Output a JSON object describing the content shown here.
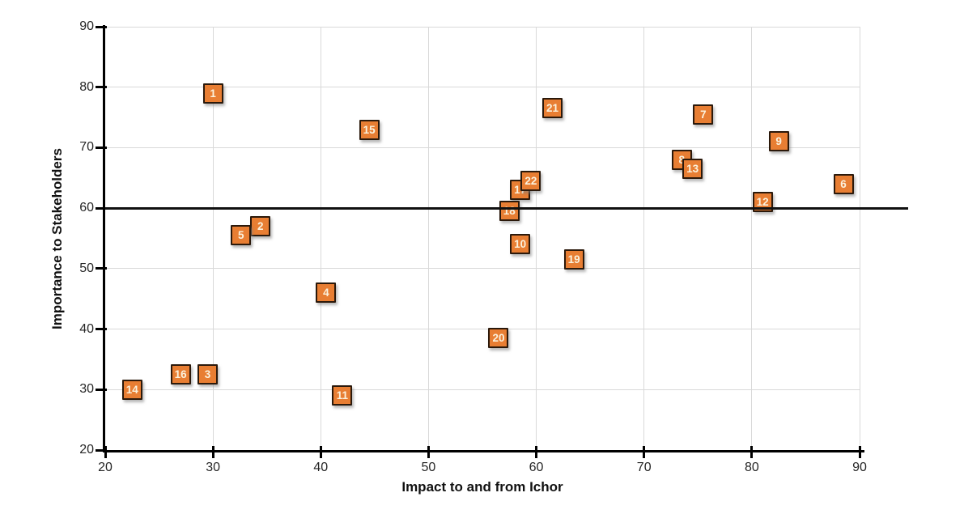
{
  "chart_data": {
    "type": "scatter",
    "title": "",
    "xlabel": "Impact to and from Ichor",
    "ylabel": "Importance to Stakeholders",
    "xlim": [
      20,
      90
    ],
    "ylim": [
      20,
      90
    ],
    "xticks": [
      20,
      30,
      40,
      50,
      60,
      70,
      80,
      90
    ],
    "yticks": [
      20,
      30,
      40,
      50,
      60,
      70,
      80,
      90
    ],
    "grid": true,
    "legend": "none",
    "reference_line_y": 60,
    "marker_shape": "labeled-square",
    "series": [
      {
        "name": "items",
        "points": [
          {
            "label": "1",
            "x": 30,
            "y": 79
          },
          {
            "label": "2",
            "x": 34.4,
            "y": 57
          },
          {
            "label": "3",
            "x": 29.5,
            "y": 32.5
          },
          {
            "label": "4",
            "x": 40.5,
            "y": 46
          },
          {
            "label": "5",
            "x": 32.6,
            "y": 55.6
          },
          {
            "label": "6",
            "x": 88.5,
            "y": 64
          },
          {
            "label": "7",
            "x": 75.5,
            "y": 75.5
          },
          {
            "label": "8",
            "x": 73.5,
            "y": 68
          },
          {
            "label": "9",
            "x": 82.5,
            "y": 71
          },
          {
            "label": "10",
            "x": 58.5,
            "y": 54
          },
          {
            "label": "11",
            "x": 42,
            "y": 29
          },
          {
            "label": "12",
            "x": 81,
            "y": 61
          },
          {
            "label": "13",
            "x": 74.5,
            "y": 66.5
          },
          {
            "label": "14",
            "x": 22.5,
            "y": 30
          },
          {
            "label": "15",
            "x": 44.5,
            "y": 73
          },
          {
            "label": "16",
            "x": 27,
            "y": 32.5
          },
          {
            "label": "17",
            "x": 58.5,
            "y": 63
          },
          {
            "label": "18",
            "x": 57.5,
            "y": 59.5
          },
          {
            "label": "19",
            "x": 63.5,
            "y": 51.5
          },
          {
            "label": "20",
            "x": 56.5,
            "y": 38.5
          },
          {
            "label": "21",
            "x": 61.5,
            "y": 76.5
          },
          {
            "label": "22",
            "x": 59.5,
            "y": 64.5
          }
        ]
      }
    ],
    "colors": {
      "marker_fill": "#e87e33",
      "marker_border": "#2b190b",
      "marker_label": "#fbf2de",
      "gridline": "#d9d9d9",
      "axis": "#000000",
      "tick_label": "#262626",
      "reference_line": "#111111"
    }
  }
}
